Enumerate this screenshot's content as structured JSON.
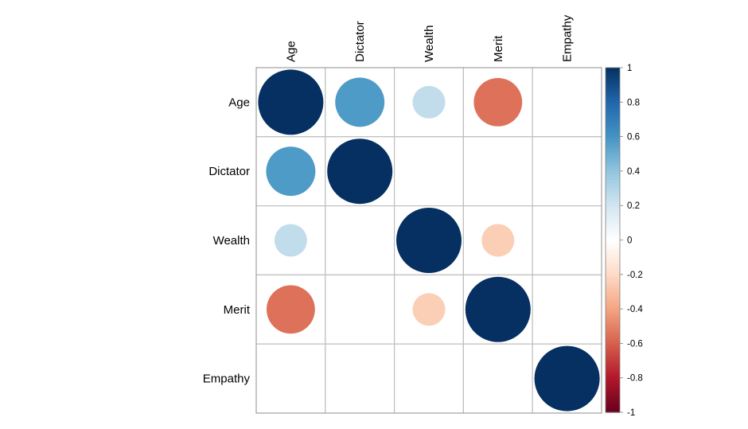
{
  "chart_data": {
    "type": "heatmap",
    "style": "correlation-circles",
    "variables": [
      "Age",
      "Dictator",
      "Wealth",
      "Merit",
      "Empathy"
    ],
    "matrix": [
      [
        1.0,
        0.57,
        0.25,
        -0.55,
        0.0
      ],
      [
        0.57,
        1.0,
        0.0,
        0.0,
        0.0
      ],
      [
        0.25,
        0.0,
        1.0,
        -0.25,
        0.0
      ],
      [
        -0.55,
        0.0,
        -0.25,
        1.0,
        0.0
      ],
      [
        0.0,
        0.0,
        0.0,
        0.0,
        1.0
      ]
    ],
    "colorbar": {
      "min": -1,
      "max": 1,
      "ticks": [
        "1",
        "0.8",
        "0.6",
        "0.4",
        "0.2",
        "0",
        "-0.2",
        "-0.4",
        "-0.6",
        "-0.8",
        "-1"
      ],
      "palette": [
        "#67001F",
        "#B2182B",
        "#D6604D",
        "#F4A582",
        "#FDDBC7",
        "#FFFFFF",
        "#D1E5F0",
        "#92C5DE",
        "#4393C3",
        "#2166AC",
        "#053061"
      ]
    },
    "grid": true,
    "colors": {
      "grid": "#bfbfbf",
      "border": "#9a9a9a"
    }
  }
}
